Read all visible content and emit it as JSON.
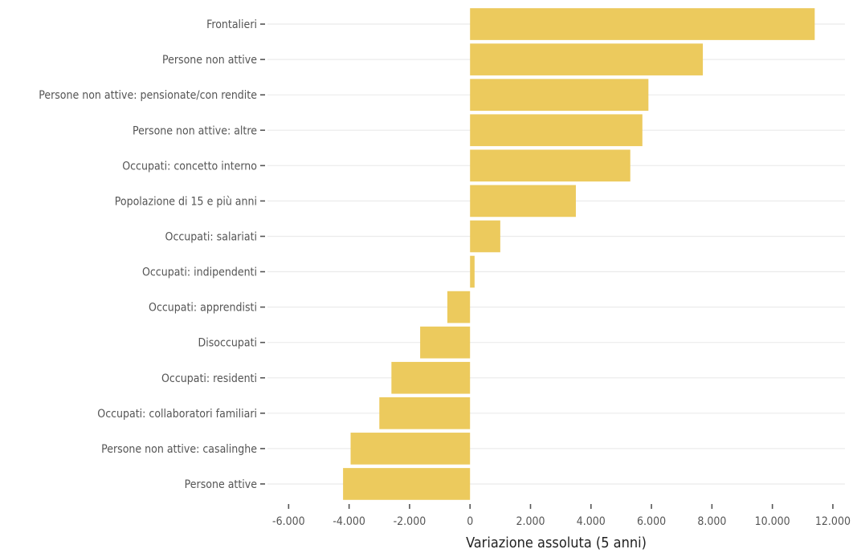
{
  "chart_data": {
    "type": "bar",
    "orientation": "horizontal",
    "categories": [
      "Frontalieri",
      "Persone non attive",
      "Persone non attive: pensionate/con rendite",
      "Persone non attive: altre",
      "Occupati: concetto interno",
      "Popolazione di 15 e più anni",
      "Occupati: salariati",
      "Occupati: indipendenti",
      "Occupati: apprendisti",
      "Disoccupati",
      "Occupati: residenti",
      "Occupati: collaboratori familiari",
      "Persone non attive: casalinghe",
      "Persone attive"
    ],
    "values": [
      11400,
      7700,
      5900,
      5700,
      5300,
      3500,
      1000,
      150,
      -750,
      -1650,
      -2600,
      -3000,
      -3950,
      -4200
    ],
    "xlabel": "Variazione assoluta (5 anni)",
    "ylabel": "",
    "xlim": [
      -6700,
      12400
    ],
    "x_ticks": [
      -6000,
      -4000,
      -2000,
      0,
      2000,
      4000,
      6000,
      8000,
      10000,
      12000
    ],
    "x_tick_labels": [
      "-6.000",
      "-4.000",
      "-2.000",
      "0",
      "2.000",
      "4.000",
      "6.000",
      "8.000",
      "10.000",
      "12.000"
    ],
    "grid": true,
    "legend": "none",
    "bar_color": "#ecca5d"
  }
}
